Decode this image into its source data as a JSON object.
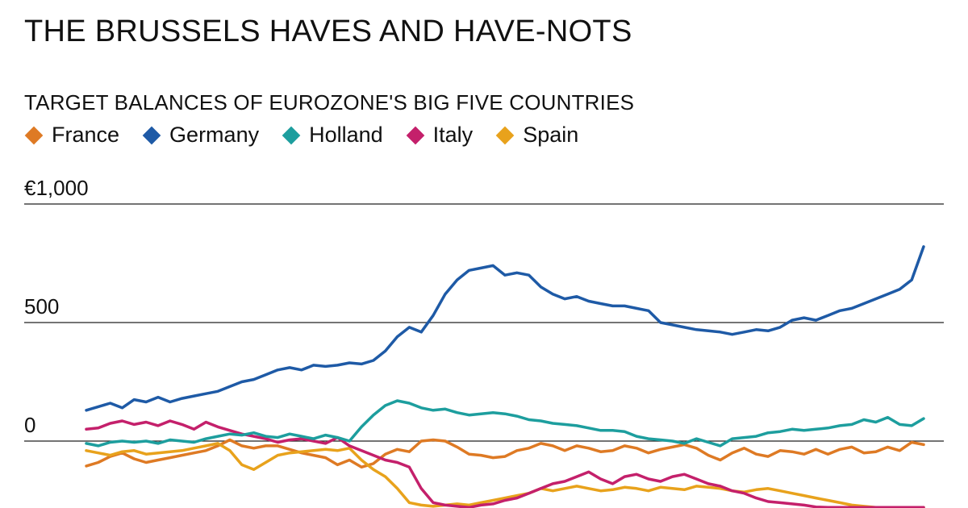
{
  "title": "THE BRUSSELS HAVES AND HAVE-NOTS",
  "chart_data": {
    "type": "line",
    "title": "TARGET BALANCES OF EUROZONE'S BIG FIVE COUNTRIES",
    "xlabel": "",
    "ylabel": "",
    "ylim": [
      -280,
      1000
    ],
    "yticks": [
      {
        "value": 1000,
        "label": "€1,000"
      },
      {
        "value": 500,
        "label": "500"
      },
      {
        "value": 0,
        "label": "0"
      }
    ],
    "grid": true,
    "legend_position": "top-left",
    "series": [
      {
        "name": "France",
        "color": "#de7a24",
        "values": [
          -105,
          -90,
          -65,
          -50,
          -75,
          -90,
          -80,
          -70,
          -60,
          -50,
          -40,
          -20,
          5,
          -20,
          -30,
          -20,
          -20,
          -35,
          -50,
          -60,
          -70,
          -100,
          -80,
          -110,
          -95,
          -55,
          -35,
          -45,
          0,
          5,
          0,
          -25,
          -55,
          -60,
          -70,
          -65,
          -40,
          -30,
          -10,
          -20,
          -40,
          -20,
          -30,
          -45,
          -40,
          -20,
          -30,
          -50,
          -35,
          -25,
          -15,
          -30,
          -60,
          -80,
          -50,
          -30,
          -55,
          -65,
          -40,
          -45,
          -55,
          -35,
          -55,
          -35,
          -25,
          -50,
          -45,
          -25,
          -40,
          -5,
          -15
        ]
      },
      {
        "name": "Germany",
        "color": "#1e5aa6",
        "values": [
          130,
          145,
          160,
          140,
          175,
          165,
          185,
          165,
          180,
          190,
          200,
          210,
          230,
          250,
          260,
          280,
          300,
          310,
          300,
          320,
          315,
          320,
          330,
          325,
          340,
          380,
          440,
          480,
          460,
          530,
          620,
          680,
          720,
          730,
          740,
          700,
          710,
          700,
          650,
          620,
          600,
          610,
          590,
          580,
          570,
          570,
          560,
          550,
          500,
          490,
          480,
          470,
          465,
          460,
          450,
          460,
          470,
          465,
          480,
          510,
          520,
          510,
          530,
          550,
          560,
          580,
          600,
          620,
          640,
          680,
          820
        ]
      },
      {
        "name": "Holland",
        "color": "#1d9e9e",
        "values": [
          -10,
          -20,
          -5,
          0,
          -5,
          0,
          -10,
          5,
          0,
          -5,
          10,
          20,
          30,
          25,
          35,
          20,
          15,
          30,
          20,
          10,
          25,
          15,
          0,
          60,
          110,
          150,
          170,
          160,
          140,
          130,
          135,
          120,
          110,
          115,
          120,
          115,
          105,
          90,
          85,
          75,
          70,
          65,
          55,
          45,
          45,
          40,
          20,
          10,
          5,
          0,
          -10,
          10,
          -5,
          -20,
          10,
          15,
          20,
          35,
          40,
          50,
          45,
          50,
          55,
          65,
          70,
          90,
          80,
          100,
          70,
          65,
          95
        ]
      },
      {
        "name": "Italy",
        "color": "#c4206b",
        "values": [
          50,
          55,
          75,
          85,
          70,
          80,
          65,
          85,
          70,
          50,
          80,
          60,
          45,
          30,
          20,
          10,
          -5,
          5,
          10,
          0,
          -10,
          15,
          -20,
          -40,
          -60,
          -80,
          -90,
          -110,
          -200,
          -260,
          -270,
          -275,
          -280,
          -270,
          -265,
          -250,
          -240,
          -220,
          -200,
          -180,
          -170,
          -150,
          -130,
          -160,
          -180,
          -150,
          -140,
          -160,
          -170,
          -150,
          -140,
          -160,
          -180,
          -190,
          -210,
          -220,
          -240,
          -255,
          -260,
          -265,
          -270,
          -278,
          -280,
          -280,
          -280,
          -280,
          -280,
          -280,
          -280,
          -280,
          -280
        ]
      },
      {
        "name": "Spain",
        "color": "#e8a21c",
        "values": [
          -40,
          -50,
          -60,
          -45,
          -40,
          -55,
          -50,
          -45,
          -40,
          -30,
          -20,
          -10,
          -40,
          -100,
          -120,
          -90,
          -60,
          -50,
          -45,
          -40,
          -35,
          -40,
          -30,
          -80,
          -120,
          -150,
          -200,
          -260,
          -270,
          -275,
          -270,
          -265,
          -270,
          -260,
          -250,
          -240,
          -230,
          -220,
          -200,
          -210,
          -200,
          -190,
          -200,
          -210,
          -205,
          -195,
          -200,
          -210,
          -195,
          -200,
          -205,
          -190,
          -195,
          -200,
          -210,
          -215,
          -205,
          -200,
          -210,
          -220,
          -230,
          -240,
          -250,
          -260,
          -270,
          -275,
          -280,
          -280,
          -280,
          -280,
          -280
        ]
      }
    ]
  }
}
